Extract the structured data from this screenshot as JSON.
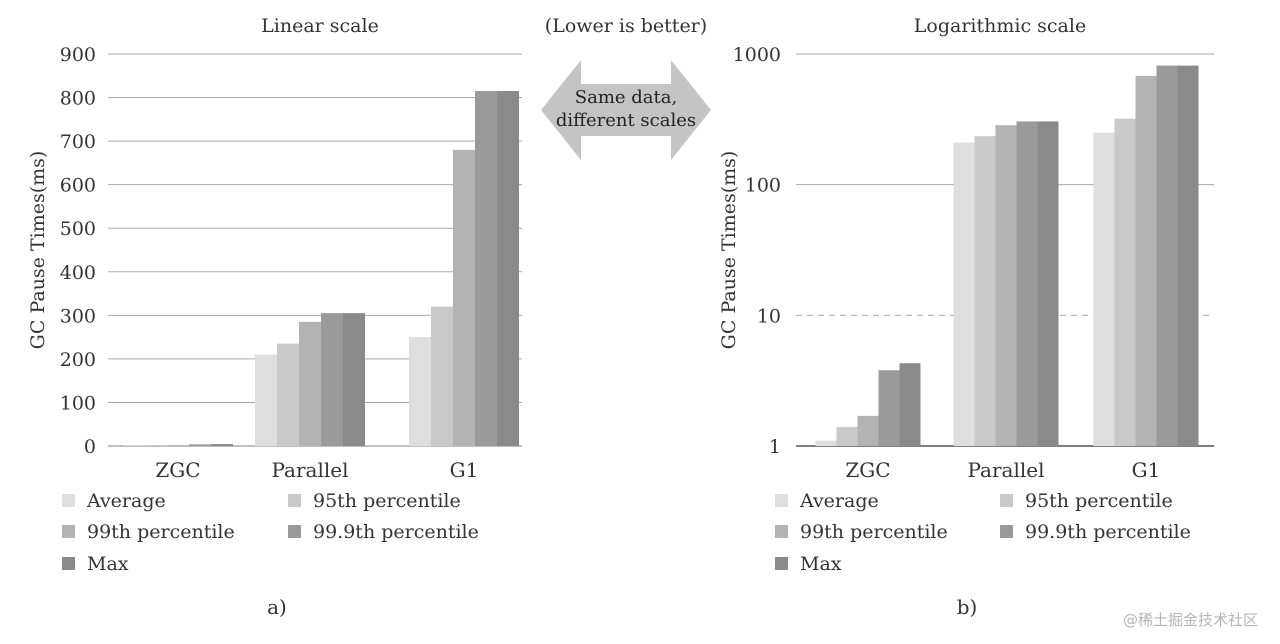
{
  "header_note": "(Lower is better)",
  "arrow_label": [
    "Same data,",
    "different scales"
  ],
  "watermark": "@稀土掘金技术社区",
  "colors": {
    "Average": "#dedede",
    "95th percentile": "#c9c9c9",
    "99th percentile": "#b3b3b3",
    "99.9th percentile": "#9a9a9a",
    "Max": "#8a8a8a",
    "arrow": "#c4c4c4",
    "grid": "#aaaaaa"
  },
  "chart_data": [
    {
      "type": "bar",
      "title": "Linear scale",
      "xlabel": "",
      "ylabel": "GC Pause Times(ms)",
      "yscale": "linear",
      "ylim": [
        0,
        900
      ],
      "yticks": [
        "0",
        "100",
        "200",
        "300",
        "400",
        "500",
        "600",
        "700",
        "800",
        "900"
      ],
      "grid": true,
      "legend": "bottom",
      "caption": "a)",
      "categories": [
        "ZGC",
        "Parallel",
        "G1"
      ],
      "series": [
        {
          "name": "Average",
          "values": [
            1.1,
            210,
            250
          ]
        },
        {
          "name": "95th percentile",
          "values": [
            1.4,
            235,
            320
          ]
        },
        {
          "name": "99th percentile",
          "values": [
            1.7,
            285,
            680
          ]
        },
        {
          "name": "99.9th percentile",
          "values": [
            3.8,
            305,
            815
          ]
        },
        {
          "name": "Max",
          "values": [
            4.3,
            305,
            815
          ]
        }
      ]
    },
    {
      "type": "bar",
      "title": "Logarithmic scale",
      "xlabel": "",
      "ylabel": "GC Pause Times(ms)",
      "yscale": "log",
      "ylim": [
        1,
        1000
      ],
      "yticks": [
        "1",
        "10",
        "100",
        "1000"
      ],
      "grid": true,
      "legend": "bottom",
      "caption": "b)",
      "categories": [
        "ZGC",
        "Parallel",
        "G1"
      ],
      "series": [
        {
          "name": "Average",
          "values": [
            1.1,
            210,
            250
          ]
        },
        {
          "name": "95th percentile",
          "values": [
            1.4,
            235,
            320
          ]
        },
        {
          "name": "99th percentile",
          "values": [
            1.7,
            285,
            680
          ]
        },
        {
          "name": "99.9th percentile",
          "values": [
            3.8,
            305,
            815
          ]
        },
        {
          "name": "Max",
          "values": [
            4.3,
            305,
            815
          ]
        }
      ]
    }
  ]
}
